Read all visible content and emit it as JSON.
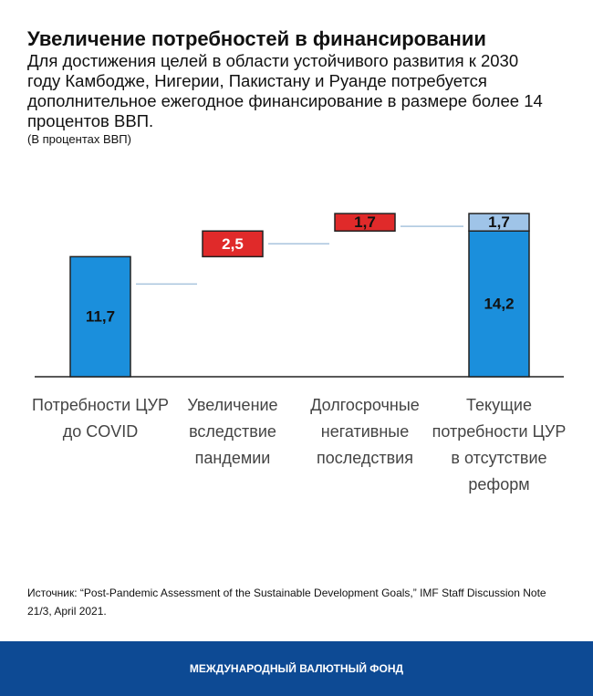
{
  "chart_data": {
    "type": "waterfall",
    "title": "Увеличение потребностей в финансировании",
    "subtitle": "Для достижения целей в области устойчивого развития к 2030 году Камбодже, Нигерии, Пакистану и Руанде потребуется дополнительное ежегодное финансирование в размере более 14 процентов ВВП.",
    "note": "(В процентах ВВП)",
    "categories": [
      "Потребности ЦУР до COVID",
      "Увеличение вследствие пандемии",
      "Долгосрочные негативные последствия",
      "Текущие потребности ЦУР в отсутствие реформ"
    ],
    "series": [
      {
        "color": "#1b8fdc",
        "values": [
          11.7,
          null,
          null,
          14.2
        ],
        "value_labels": [
          "11,7",
          null,
          null,
          "14,2"
        ]
      },
      {
        "color": "#e02a2a",
        "values": [
          null,
          2.5,
          1.7,
          null
        ],
        "value_labels": [
          null,
          "2,5",
          "1,7",
          null
        ]
      },
      {
        "color": "#9fc4e8",
        "values": [
          null,
          null,
          null,
          1.7
        ],
        "value_labels": [
          null,
          null,
          null,
          "1,7"
        ]
      }
    ]
  },
  "source": "Источник: “Post-Pandemic Assessment of the Sustainable Development Goals,” IMF Staff Discussion Note 21/3, April 2021.",
  "footer": "МЕЖДУНАРОДНЫЙ ВАЛЮТНЫЙ ФОНД"
}
